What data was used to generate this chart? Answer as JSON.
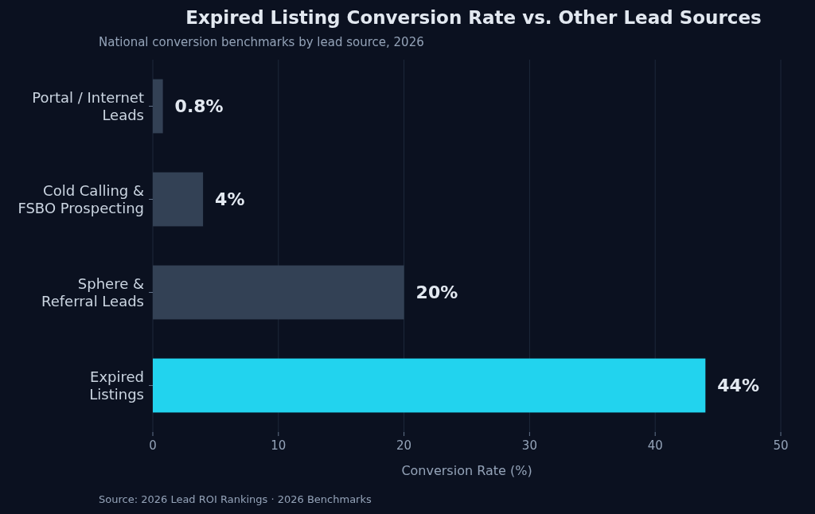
{
  "chart_data": {
    "type": "bar",
    "orientation": "horizontal",
    "title": "Expired Listing Conversion Rate vs. Other Lead Sources",
    "subtitle": "National conversion benchmarks by lead source, 2026",
    "xlabel": "Conversion Rate (%)",
    "categories": [
      "Portal / Internet\nLeads",
      "Cold Calling &\nFSBO Prospecting",
      "Sphere &\nReferral Leads",
      "Expired\nListings"
    ],
    "values": [
      0.8,
      4,
      20,
      44
    ],
    "colors": [
      "#334155",
      "#334155",
      "#334155",
      "#22d3ee"
    ],
    "value_labels": [
      "0.8%",
      "4%",
      "20%",
      "44%"
    ],
    "xlim": [
      0,
      50
    ],
    "xticks": [
      0,
      10,
      20,
      30,
      40,
      50
    ],
    "grid": "x",
    "annotations": [
      "Source: 2026 Lead ROI Rankings · 2026 Benchmarks"
    ]
  }
}
